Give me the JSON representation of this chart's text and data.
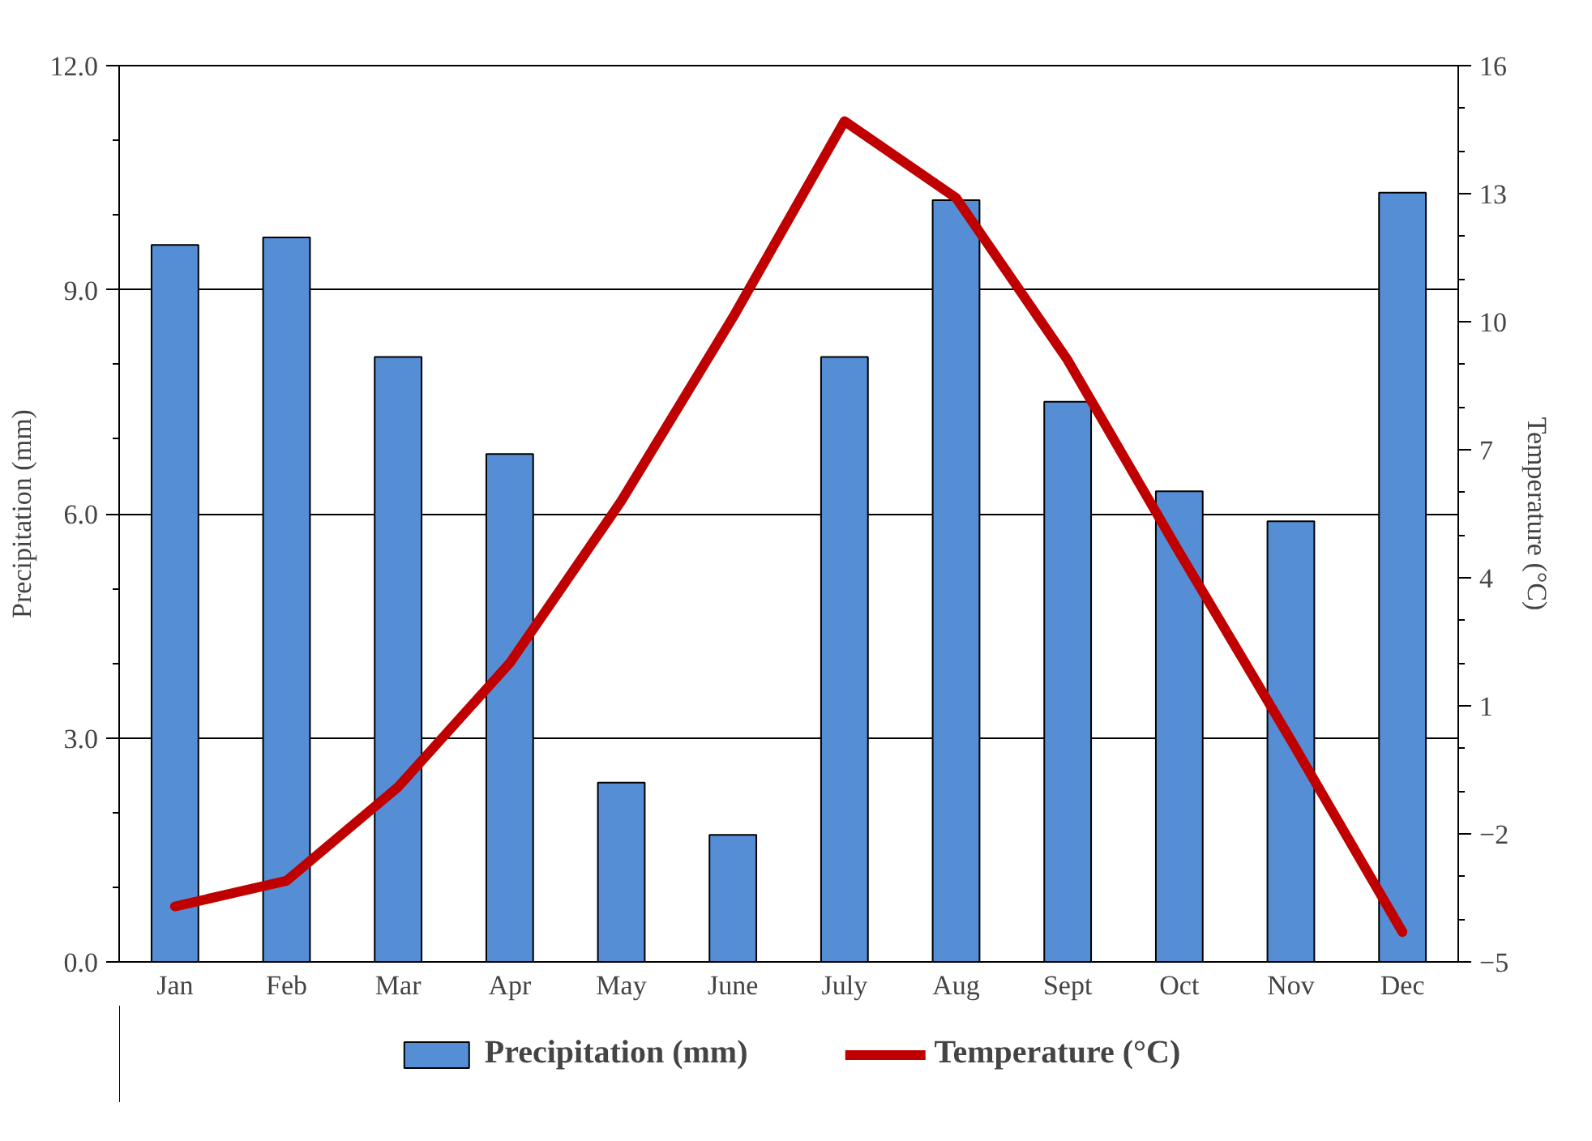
{
  "chart_data": {
    "type": "bar",
    "categories": [
      "Jan",
      "Feb",
      "Mar",
      "Apr",
      "May",
      "June",
      "July",
      "Aug",
      "Sept",
      "Oct",
      "Nov",
      "Dec"
    ],
    "ylabel": "Precipitation (mm)",
    "y2label": "Temperature (°C)",
    "ylim": [
      0,
      12
    ],
    "yticks": [
      {
        "value": 0,
        "label": "0.0"
      },
      {
        "value": 3,
        "label": "3.0"
      },
      {
        "value": 6,
        "label": "6.0"
      },
      {
        "value": 9,
        "label": "9.0"
      },
      {
        "value": 12,
        "label": "12.0"
      }
    ],
    "y2lim": [
      -5,
      16
    ],
    "y2ticks": [
      -5,
      -2,
      1,
      4,
      7,
      10,
      13,
      16
    ],
    "grid": "y",
    "legend": "bottom",
    "series": [
      {
        "name": "Precipitation (mm)",
        "color": "#558ed5",
        "values": [
          9.6,
          9.7,
          8.1,
          6.8,
          2.4,
          1.7,
          8.1,
          10.2,
          7.5,
          6.3,
          5.9,
          10.3
        ]
      },
      {
        "name": "Temperature (°C)",
        "type": "line",
        "axis": "y2",
        "color": "#c00000",
        "values": [
          -3.7,
          -3.1,
          -0.9,
          2.0,
          5.8,
          10.1,
          14.7,
          12.9,
          9.1,
          4.6,
          0.2,
          -4.3
        ]
      }
    ]
  }
}
